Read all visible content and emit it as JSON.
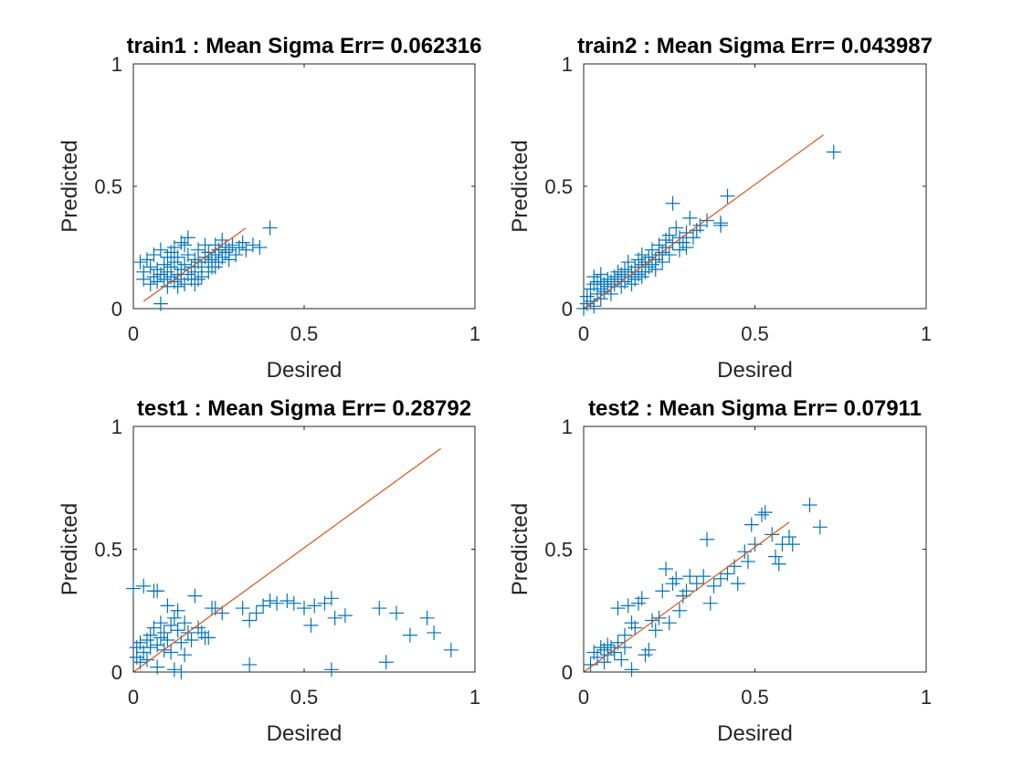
{
  "colors": {
    "marker": "#0072BD",
    "fit_line": "#D95319",
    "axes": "#262626"
  },
  "chart_data": [
    {
      "type": "scatter",
      "title": "train1 :  Mean Sigma Err= 0.062316",
      "xlabel": "Desired",
      "ylabel": "Predicted",
      "xlim": [
        0,
        1
      ],
      "ylim": [
        0,
        1
      ],
      "xticks": [
        "0",
        "0.5",
        "1"
      ],
      "yticks": [
        "0",
        "0.5",
        "1"
      ],
      "grid": false,
      "marker": "+",
      "fit_line": {
        "x": [
          0.03,
          0.33
        ],
        "y": [
          0.03,
          0.33
        ]
      },
      "points": [
        [
          0.02,
          0.19
        ],
        [
          0.03,
          0.15
        ],
        [
          0.03,
          0.12
        ],
        [
          0.04,
          0.2
        ],
        [
          0.05,
          0.1
        ],
        [
          0.05,
          0.17
        ],
        [
          0.06,
          0.13
        ],
        [
          0.06,
          0.22
        ],
        [
          0.07,
          0.11
        ],
        [
          0.07,
          0.16
        ],
        [
          0.08,
          0.14
        ],
        [
          0.08,
          0.24
        ],
        [
          0.08,
          0.02
        ],
        [
          0.09,
          0.18
        ],
        [
          0.09,
          0.12
        ],
        [
          0.1,
          0.09
        ],
        [
          0.1,
          0.15
        ],
        [
          0.1,
          0.21
        ],
        [
          0.11,
          0.13
        ],
        [
          0.11,
          0.17
        ],
        [
          0.12,
          0.11
        ],
        [
          0.12,
          0.19
        ],
        [
          0.12,
          0.25
        ],
        [
          0.13,
          0.14
        ],
        [
          0.13,
          0.09
        ],
        [
          0.13,
          0.21
        ],
        [
          0.14,
          0.16
        ],
        [
          0.14,
          0.12
        ],
        [
          0.14,
          0.27
        ],
        [
          0.15,
          0.18
        ],
        [
          0.15,
          0.1
        ],
        [
          0.16,
          0.14
        ],
        [
          0.16,
          0.22
        ],
        [
          0.16,
          0.29
        ],
        [
          0.17,
          0.12
        ],
        [
          0.17,
          0.17
        ],
        [
          0.18,
          0.15
        ],
        [
          0.18,
          0.2
        ],
        [
          0.18,
          0.1
        ],
        [
          0.19,
          0.19
        ],
        [
          0.19,
          0.24
        ],
        [
          0.2,
          0.13
        ],
        [
          0.2,
          0.17
        ],
        [
          0.21,
          0.21
        ],
        [
          0.21,
          0.26
        ],
        [
          0.22,
          0.15
        ],
        [
          0.22,
          0.19
        ],
        [
          0.22,
          0.23
        ],
        [
          0.23,
          0.2
        ],
        [
          0.23,
          0.17
        ],
        [
          0.24,
          0.22
        ],
        [
          0.24,
          0.26
        ],
        [
          0.25,
          0.19
        ],
        [
          0.25,
          0.24
        ],
        [
          0.26,
          0.21
        ],
        [
          0.26,
          0.28
        ],
        [
          0.27,
          0.23
        ],
        [
          0.27,
          0.25
        ],
        [
          0.28,
          0.2
        ],
        [
          0.28,
          0.24
        ],
        [
          0.29,
          0.26
        ],
        [
          0.3,
          0.22
        ],
        [
          0.31,
          0.25
        ],
        [
          0.32,
          0.27
        ],
        [
          0.33,
          0.24
        ],
        [
          0.35,
          0.26
        ],
        [
          0.37,
          0.25
        ],
        [
          0.4,
          0.33
        ],
        [
          0.11,
          0.23
        ],
        [
          0.19,
          0.12
        ],
        [
          0.24,
          0.17
        ],
        [
          0.15,
          0.26
        ]
      ]
    },
    {
      "type": "scatter",
      "title": "train2 :  Mean Sigma Err= 0.043987",
      "xlabel": "Desired",
      "ylabel": "Predicted",
      "xlim": [
        0,
        1
      ],
      "ylim": [
        0,
        1
      ],
      "xticks": [
        "0",
        "0.5",
        "1"
      ],
      "yticks": [
        "0",
        "0.5",
        "1"
      ],
      "grid": false,
      "marker": "+",
      "fit_line": {
        "x": [
          0.0,
          0.7
        ],
        "y": [
          0.0,
          0.71
        ]
      },
      "points": [
        [
          0.0,
          0.0
        ],
        [
          0.01,
          0.02
        ],
        [
          0.01,
          0.05
        ],
        [
          0.02,
          0.03
        ],
        [
          0.02,
          0.08
        ],
        [
          0.03,
          0.01
        ],
        [
          0.03,
          0.1
        ],
        [
          0.03,
          0.13
        ],
        [
          0.04,
          0.06
        ],
        [
          0.04,
          0.11
        ],
        [
          0.05,
          0.04
        ],
        [
          0.05,
          0.08
        ],
        [
          0.05,
          0.14
        ],
        [
          0.06,
          0.07
        ],
        [
          0.06,
          0.1
        ],
        [
          0.07,
          0.09
        ],
        [
          0.07,
          0.12
        ],
        [
          0.08,
          0.11
        ],
        [
          0.08,
          0.06
        ],
        [
          0.09,
          0.13
        ],
        [
          0.09,
          0.1
        ],
        [
          0.1,
          0.12
        ],
        [
          0.1,
          0.15
        ],
        [
          0.11,
          0.09
        ],
        [
          0.11,
          0.14
        ],
        [
          0.12,
          0.11
        ],
        [
          0.12,
          0.16
        ],
        [
          0.13,
          0.13
        ],
        [
          0.13,
          0.19
        ],
        [
          0.14,
          0.1
        ],
        [
          0.14,
          0.15
        ],
        [
          0.15,
          0.17
        ],
        [
          0.15,
          0.12
        ],
        [
          0.16,
          0.2
        ],
        [
          0.16,
          0.14
        ],
        [
          0.17,
          0.18
        ],
        [
          0.17,
          0.22
        ],
        [
          0.18,
          0.15
        ],
        [
          0.18,
          0.19
        ],
        [
          0.19,
          0.17
        ],
        [
          0.19,
          0.21
        ],
        [
          0.2,
          0.18
        ],
        [
          0.2,
          0.24
        ],
        [
          0.21,
          0.16
        ],
        [
          0.21,
          0.2
        ],
        [
          0.22,
          0.22
        ],
        [
          0.22,
          0.26
        ],
        [
          0.23,
          0.19
        ],
        [
          0.23,
          0.23
        ],
        [
          0.24,
          0.25
        ],
        [
          0.24,
          0.28
        ],
        [
          0.25,
          0.22
        ],
        [
          0.25,
          0.3
        ],
        [
          0.26,
          0.27
        ],
        [
          0.26,
          0.43
        ],
        [
          0.27,
          0.33
        ],
        [
          0.28,
          0.24
        ],
        [
          0.28,
          0.29
        ],
        [
          0.29,
          0.27
        ],
        [
          0.3,
          0.31
        ],
        [
          0.3,
          0.25
        ],
        [
          0.31,
          0.37
        ],
        [
          0.32,
          0.29
        ],
        [
          0.33,
          0.32
        ],
        [
          0.34,
          0.34
        ],
        [
          0.36,
          0.36
        ],
        [
          0.4,
          0.34
        ],
        [
          0.4,
          0.35
        ],
        [
          0.42,
          0.46
        ],
        [
          0.73,
          0.64
        ],
        [
          0.05,
          0.11
        ],
        [
          0.17,
          0.13
        ]
      ]
    },
    {
      "type": "scatter",
      "title": "test1 :  Mean Sigma Err= 0.28792",
      "xlabel": "Desired",
      "ylabel": "Predicted",
      "xlim": [
        0,
        1
      ],
      "ylim": [
        0,
        1
      ],
      "xticks": [
        "0",
        "0.5",
        "1"
      ],
      "yticks": [
        "0",
        "0.5",
        "1"
      ],
      "grid": false,
      "marker": "+",
      "fit_line": {
        "x": [
          0.0,
          0.9
        ],
        "y": [
          0.0,
          0.91
        ]
      },
      "points": [
        [
          0.0,
          0.34
        ],
        [
          0.01,
          0.06
        ],
        [
          0.01,
          0.1
        ],
        [
          0.02,
          0.04
        ],
        [
          0.02,
          0.12
        ],
        [
          0.03,
          0.08
        ],
        [
          0.03,
          0.35
        ],
        [
          0.04,
          0.13
        ],
        [
          0.04,
          0.05
        ],
        [
          0.05,
          0.15
        ],
        [
          0.05,
          0.1
        ],
        [
          0.06,
          0.33
        ],
        [
          0.06,
          0.18
        ],
        [
          0.07,
          0.11
        ],
        [
          0.07,
          0.33
        ],
        [
          0.08,
          0.14
        ],
        [
          0.08,
          0.2
        ],
        [
          0.09,
          0.09
        ],
        [
          0.09,
          0.16
        ],
        [
          0.1,
          0.13
        ],
        [
          0.1,
          0.27
        ],
        [
          0.11,
          0.19
        ],
        [
          0.11,
          0.08
        ],
        [
          0.12,
          0.22
        ],
        [
          0.12,
          0.01
        ],
        [
          0.13,
          0.17
        ],
        [
          0.13,
          0.25
        ],
        [
          0.14,
          0.12
        ],
        [
          0.14,
          0.0
        ],
        [
          0.15,
          0.2
        ],
        [
          0.16,
          0.16
        ],
        [
          0.17,
          0.13
        ],
        [
          0.18,
          0.31
        ],
        [
          0.19,
          0.18
        ],
        [
          0.2,
          0.16
        ],
        [
          0.21,
          0.14
        ],
        [
          0.22,
          0.14
        ],
        [
          0.23,
          0.26
        ],
        [
          0.24,
          0.26
        ],
        [
          0.34,
          0.03
        ],
        [
          0.32,
          0.26
        ],
        [
          0.34,
          0.21
        ],
        [
          0.36,
          0.24
        ],
        [
          0.38,
          0.27
        ],
        [
          0.4,
          0.29
        ],
        [
          0.42,
          0.28
        ],
        [
          0.45,
          0.29
        ],
        [
          0.47,
          0.28
        ],
        [
          0.5,
          0.26
        ],
        [
          0.52,
          0.19
        ],
        [
          0.53,
          0.27
        ],
        [
          0.56,
          0.28
        ],
        [
          0.58,
          0.01
        ],
        [
          0.58,
          0.3
        ],
        [
          0.59,
          0.22
        ],
        [
          0.62,
          0.23
        ],
        [
          0.72,
          0.26
        ],
        [
          0.74,
          0.04
        ],
        [
          0.77,
          0.24
        ],
        [
          0.81,
          0.15
        ],
        [
          0.86,
          0.22
        ],
        [
          0.88,
          0.16
        ],
        [
          0.93,
          0.09
        ],
        [
          0.07,
          0.02
        ],
        [
          0.15,
          0.07
        ],
        [
          0.26,
          0.24
        ]
      ]
    },
    {
      "type": "scatter",
      "title": "test2 :  Mean Sigma Err= 0.07911",
      "xlabel": "Desired",
      "ylabel": "Predicted",
      "xlim": [
        0,
        1
      ],
      "ylim": [
        0,
        1
      ],
      "xticks": [
        "0",
        "0.5",
        "1"
      ],
      "yticks": [
        "0",
        "0.5",
        "1"
      ],
      "grid": false,
      "marker": "+",
      "fit_line": {
        "x": [
          0.0,
          0.6
        ],
        "y": [
          0.0,
          0.61
        ]
      },
      "points": [
        [
          0.02,
          0.03
        ],
        [
          0.03,
          0.08
        ],
        [
          0.04,
          0.06
        ],
        [
          0.05,
          0.1
        ],
        [
          0.06,
          0.04
        ],
        [
          0.06,
          0.09
        ],
        [
          0.07,
          0.11
        ],
        [
          0.07,
          0.07
        ],
        [
          0.08,
          0.1
        ],
        [
          0.09,
          0.08
        ],
        [
          0.1,
          0.12
        ],
        [
          0.1,
          0.26
        ],
        [
          0.11,
          0.05
        ],
        [
          0.12,
          0.15
        ],
        [
          0.13,
          0.27
        ],
        [
          0.14,
          0.01
        ],
        [
          0.14,
          0.2
        ],
        [
          0.15,
          0.18
        ],
        [
          0.16,
          0.28
        ],
        [
          0.17,
          0.3
        ],
        [
          0.18,
          0.07
        ],
        [
          0.19,
          0.09
        ],
        [
          0.2,
          0.21
        ],
        [
          0.22,
          0.22
        ],
        [
          0.23,
          0.33
        ],
        [
          0.24,
          0.42
        ],
        [
          0.25,
          0.2
        ],
        [
          0.26,
          0.36
        ],
        [
          0.27,
          0.38
        ],
        [
          0.28,
          0.25
        ],
        [
          0.29,
          0.31
        ],
        [
          0.3,
          0.33
        ],
        [
          0.31,
          0.39
        ],
        [
          0.33,
          0.36
        ],
        [
          0.35,
          0.39
        ],
        [
          0.36,
          0.54
        ],
        [
          0.37,
          0.28
        ],
        [
          0.38,
          0.35
        ],
        [
          0.4,
          0.38
        ],
        [
          0.42,
          0.4
        ],
        [
          0.44,
          0.43
        ],
        [
          0.45,
          0.36
        ],
        [
          0.47,
          0.49
        ],
        [
          0.48,
          0.45
        ],
        [
          0.49,
          0.6
        ],
        [
          0.5,
          0.52
        ],
        [
          0.52,
          0.64
        ],
        [
          0.53,
          0.65
        ],
        [
          0.55,
          0.56
        ],
        [
          0.56,
          0.47
        ],
        [
          0.57,
          0.44
        ],
        [
          0.58,
          0.52
        ],
        [
          0.6,
          0.55
        ],
        [
          0.61,
          0.52
        ],
        [
          0.66,
          0.68
        ],
        [
          0.69,
          0.59
        ],
        [
          0.12,
          0.1
        ],
        [
          0.21,
          0.17
        ]
      ]
    }
  ]
}
